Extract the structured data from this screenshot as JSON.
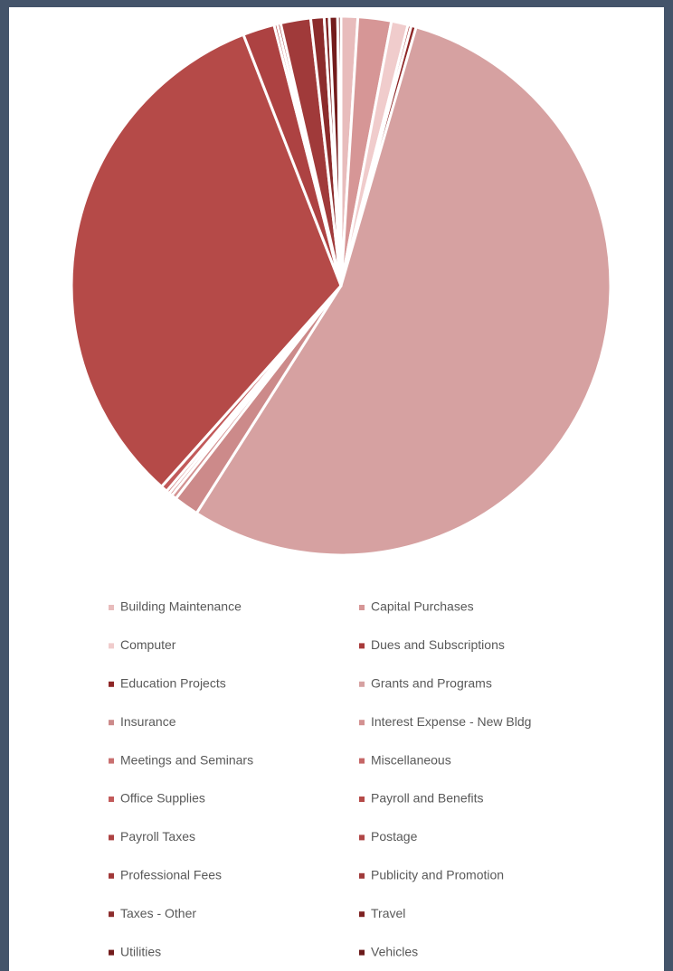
{
  "chart_data": {
    "type": "pie",
    "categories": [
      "Building Maintenance",
      "Capital Purchases",
      "Computer",
      "Dues and Subscriptions",
      "Education Projects",
      "Grants and Programs",
      "Insurance",
      "Interest Expense - New Bldg",
      "Meetings and Seminars",
      "Miscellaneous",
      "Office Supplies",
      "Payroll and Benefits",
      "Payroll Taxes",
      "Postage",
      "Professional Fees",
      "Publicity and Promotion",
      "Taxes - Other",
      "Travel",
      "Utilities",
      "Vehicles"
    ],
    "values": [
      1.0,
      2.0,
      1.0,
      0.2,
      0.3,
      54.5,
      1.5,
      0.3,
      0.2,
      0.2,
      0.4,
      32.5,
      1.9,
      0.2,
      0.2,
      1.8,
      0.8,
      0.3,
      0.5,
      0.2
    ],
    "colors": [
      "#e8bcbc",
      "#d69696",
      "#f0cccc",
      "#a83a3a",
      "#8e2626",
      "#d6a1a1",
      "#cc8a8a",
      "#d39191",
      "#c97070",
      "#c56666",
      "#c25a5a",
      "#b54a48",
      "#ad4242",
      "#b04646",
      "#a13838",
      "#a03a3a",
      "#8c2c2c",
      "#7e2222",
      "#731c1c",
      "#6b1a1a"
    ]
  }
}
